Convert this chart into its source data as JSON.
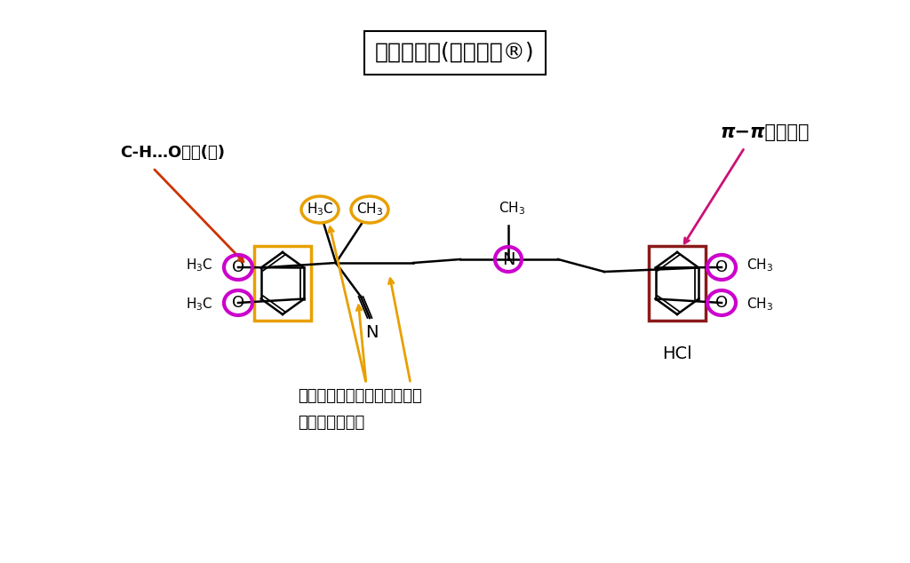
{
  "title": "ベラパミル(ワソラン®)",
  "bg_color": "#ffffff",
  "annotation_ch_o": "C-H…O結合(弱)",
  "annotation_pi": "π−π相互作用",
  "annotation_hydro_line1": "分子全体でアミノ酸４残基と",
  "annotation_hydro_line2": "疏水性相互作用",
  "orange_color": "#E8A000",
  "magenta_color": "#CC00CC",
  "red_color": "#CC3300",
  "dark_red_color": "#8B1A1A",
  "arrow_orange": "#E8A000",
  "arrow_red": "#CC3300",
  "arrow_pink": "#CC1177"
}
